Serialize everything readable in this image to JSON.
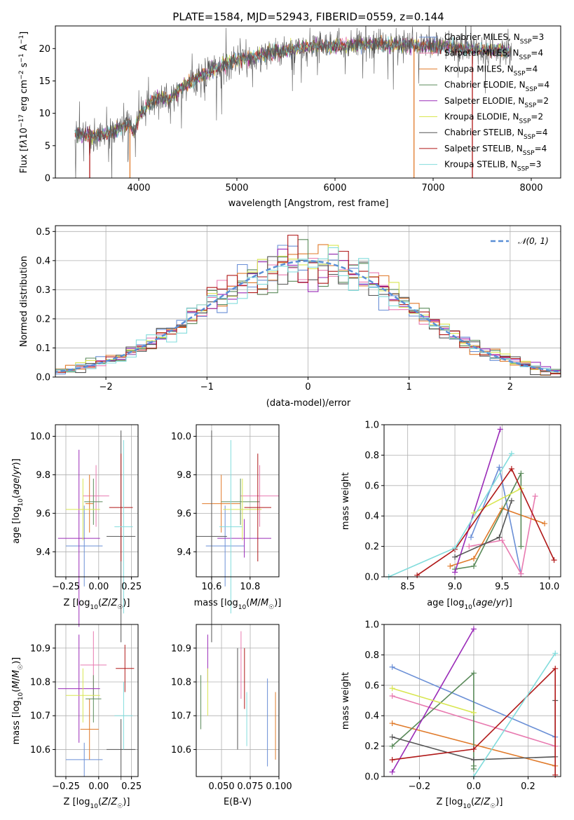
{
  "colors": {
    "chabrier_miles": "#6a8fd6",
    "salpeter_miles": "#e87ab0",
    "kroupa_miles": "#e07a2a",
    "chabrier_elodie": "#5a8a5a",
    "salpeter_elodie": "#9a2bb8",
    "kroupa_elodie": "#d8e650",
    "chabrier_stelib": "#555555",
    "salpeter_stelib": "#b01818",
    "kroupa_stelib": "#82dcdc"
  },
  "chart_data": [
    {
      "id": "spectrum",
      "type": "line",
      "title": "PLATE=1584, MJD=52943, FIBERID=0559, z=0.144",
      "xlabel": "wavelength [Angstrom, rest frame]",
      "ylabel": "Flux [fλ10⁻¹⁷ erg cm⁻² s⁻¹ A⁻¹]",
      "xlim": [
        3150,
        8300
      ],
      "ylim": [
        0,
        23.5
      ],
      "xticks": [
        "4000",
        "5000",
        "6000",
        "7000",
        "8000"
      ],
      "yticks": [
        "0",
        "5",
        "10",
        "15",
        "20"
      ],
      "grid": false,
      "legend_position": "top-right",
      "legend": [
        "Chabrier MILES, N<sub>SSP</sub>=3",
        "Salpeter MILES, N<sub>SSP</sub>=4",
        "Kroupa MILES, N<sub>SSP</sub>=4",
        "Chabrier ELODIE, N<sub>SSP</sub>=4",
        "Salpeter ELODIE, N<sub>SSP</sub>=2",
        "Kroupa ELODIE, N<sub>SSP</sub>=2",
        "Chabrier STELIB, N<sub>SSP</sub>=4",
        "Salpeter STELIB, N<sub>SSP</sub>=4",
        "Kroupa STELIB, N<sub>SSP</sub>=3"
      ],
      "legend_labels": [
        "Chabrier MILES, NSSP=3",
        "Salpeter MILES, NSSP=4",
        "Kroupa MILES, NSSP=4",
        "Chabrier ELODIE, NSSP=4",
        "Salpeter ELODIE, NSSP=2",
        "Kroupa ELODIE, NSSP=2",
        "Chabrier STELIB, NSSP=4",
        "Salpeter STELIB, NSSP=4",
        "Kroupa STELIB, NSSP=3"
      ],
      "continuum": [
        [
          3350,
          6.8
        ],
        [
          3550,
          6.5
        ],
        [
          3700,
          7.0
        ],
        [
          3800,
          7.6
        ],
        [
          3900,
          8.5
        ],
        [
          3950,
          7.0
        ],
        [
          4000,
          9.5
        ],
        [
          4100,
          11.5
        ],
        [
          4200,
          12.5
        ],
        [
          4300,
          12.0
        ],
        [
          4400,
          13.5
        ],
        [
          4600,
          15.5
        ],
        [
          4800,
          17.0
        ],
        [
          5000,
          18.3
        ],
        [
          5200,
          18.8
        ],
        [
          5400,
          19.5
        ],
        [
          5600,
          20.0
        ],
        [
          5800,
          20.3
        ],
        [
          6000,
          20.5
        ],
        [
          6200,
          20.6
        ],
        [
          6400,
          20.7
        ],
        [
          6600,
          20.6
        ],
        [
          6800,
          20.5
        ],
        [
          7000,
          20.4
        ],
        [
          7200,
          20.2
        ],
        [
          7400,
          19.9
        ],
        [
          7600,
          19.7
        ],
        [
          7800,
          19.4
        ]
      ],
      "spike_lines": [
        {
          "series": "salpeter_stelib",
          "x": 3500,
          "y_low": 0,
          "y_high": 6.5
        },
        {
          "series": "kroupa_miles",
          "x": 3910,
          "y_low": 0,
          "y_high": 8.0
        },
        {
          "series": "kroupa_miles",
          "x": 6805,
          "y_low": 0,
          "y_high": 20.5
        },
        {
          "series": "salpeter_stelib",
          "x": 7400,
          "y_low": 0,
          "y_high": 19.9
        }
      ]
    },
    {
      "id": "residuals",
      "type": "histogram",
      "xlabel": "(data-model)/error",
      "ylabel": "Normed distribution",
      "xlim": [
        -2.5,
        2.5
      ],
      "ylim": [
        0,
        0.52
      ],
      "xticks": [
        "−2",
        "−1",
        "0",
        "1",
        "2"
      ],
      "yticks": [
        "0.0",
        "0.1",
        "0.2",
        "0.3",
        "0.4",
        "0.5"
      ],
      "grid": true,
      "legend_position": "top-right",
      "legend": [
        "𝒩(0, 1)"
      ],
      "bin_width": 0.1
    },
    {
      "id": "age-vs-Z",
      "type": "errorbar",
      "xlabel": "Z [log₁₀(Z/Z☉)]",
      "ylabel": "age  [log₁₀(age/yr)]",
      "xlim": [
        -0.33,
        0.3
      ],
      "ylim": [
        9.27,
        10.06
      ],
      "xticks": [
        "−0.25",
        "0.00",
        "0.25"
      ],
      "yticks": [
        "9.4",
        "9.6",
        "9.8",
        "10.0"
      ],
      "grid": true,
      "points": [
        {
          "series": "chabrier_miles",
          "x": -0.11,
          "xerr": 0.14,
          "y": 9.43,
          "yerr": 0.21
        },
        {
          "series": "salpeter_miles",
          "x": -0.02,
          "xerr": 0.1,
          "y": 9.69,
          "yerr": 0.16
        },
        {
          "series": "kroupa_miles",
          "x": -0.07,
          "xerr": 0.03,
          "y": 9.65,
          "yerr": 0.15
        },
        {
          "series": "chabrier_elodie",
          "x": -0.04,
          "xerr": 0.07,
          "y": 9.66,
          "yerr": 0.12
        },
        {
          "series": "salpeter_elodie",
          "x": -0.15,
          "xerr": 0.16,
          "y": 9.47,
          "yerr": 0.46
        },
        {
          "series": "kroupa_elodie",
          "x": -0.12,
          "xerr": 0.13,
          "y": 9.62,
          "yerr": 0.16
        },
        {
          "series": "chabrier_stelib",
          "x": 0.17,
          "xerr": 0.11,
          "y": 9.48,
          "yerr": 0.55
        },
        {
          "series": "salpeter_stelib",
          "x": 0.17,
          "xerr": 0.09,
          "y": 9.63,
          "yerr": 0.28
        },
        {
          "series": "kroupa_stelib",
          "x": 0.19,
          "xerr": 0.07,
          "y": 9.53,
          "yerr": 0.45
        }
      ]
    },
    {
      "id": "age-vs-mass",
      "type": "errorbar",
      "xlabel": "mass [log₁₀(M/M☉)]",
      "ylabel": "",
      "xlim": [
        10.52,
        10.95
      ],
      "ylim": [
        9.27,
        10.06
      ],
      "xticks": [
        "10.6",
        "10.8"
      ],
      "yticks": [
        "9.4",
        "9.6",
        "9.8",
        "10.0"
      ],
      "grid": true,
      "points": [
        {
          "series": "chabrier_miles",
          "x": 10.67,
          "xerr": 0.1,
          "y": 9.43,
          "yerr": 0.21
        },
        {
          "series": "salpeter_miles",
          "x": 10.85,
          "xerr": 0.1,
          "y": 9.69,
          "yerr": 0.16
        },
        {
          "series": "kroupa_miles",
          "x": 10.65,
          "xerr": 0.1,
          "y": 9.65,
          "yerr": 0.15
        },
        {
          "series": "chabrier_elodie",
          "x": 10.75,
          "xerr": 0.1,
          "y": 9.66,
          "yerr": 0.12
        },
        {
          "series": "salpeter_elodie",
          "x": 10.77,
          "xerr": 0.14,
          "y": 9.47,
          "yerr": 0.1
        },
        {
          "series": "kroupa_elodie",
          "x": 10.76,
          "xerr": 0.1,
          "y": 9.62,
          "yerr": 0.16
        },
        {
          "series": "chabrier_stelib",
          "x": 10.6,
          "xerr": 0.08,
          "y": 9.48,
          "yerr": 0.55
        },
        {
          "series": "salpeter_stelib",
          "x": 10.84,
          "xerr": 0.07,
          "y": 9.63,
          "yerr": 0.28
        },
        {
          "series": "kroupa_stelib",
          "x": 10.7,
          "xerr": 0.06,
          "y": 9.53,
          "yerr": 0.45
        }
      ]
    },
    {
      "id": "weight-vs-age",
      "type": "line",
      "xlabel": "age  [log₁₀(age/yr)]",
      "ylabel": "mass weight",
      "xlim": [
        8.25,
        10.12
      ],
      "ylim": [
        0,
        1.0
      ],
      "xticks": [
        "8.5",
        "9.0",
        "9.5",
        "10.0"
      ],
      "yticks": [
        "0.0",
        "0.2",
        "0.4",
        "0.6",
        "0.8",
        "1.0"
      ],
      "grid": true,
      "series": [
        {
          "key": "chabrier_miles",
          "x": [
            9.17,
            9.47,
            9.7
          ],
          "y": [
            0.26,
            0.72,
            0.02
          ]
        },
        {
          "key": "salpeter_miles",
          "x": [
            9.15,
            9.5,
            9.7,
            9.85
          ],
          "y": [
            0.2,
            0.24,
            0.02,
            0.53
          ]
        },
        {
          "key": "kroupa_miles",
          "x": [
            8.95,
            9.2,
            9.5,
            9.95
          ],
          "y": [
            0.07,
            0.12,
            0.45,
            0.35
          ]
        },
        {
          "key": "chabrier_elodie",
          "x": [
            9.0,
            9.2,
            9.7,
            9.7
          ],
          "y": [
            0.05,
            0.07,
            0.68,
            0.2
          ]
        },
        {
          "key": "salpeter_elodie",
          "x": [
            9.0,
            9.48
          ],
          "y": [
            0.03,
            0.97
          ]
        },
        {
          "key": "kroupa_elodie",
          "x": [
            9.2,
            9.7
          ],
          "y": [
            0.42,
            0.58
          ]
        },
        {
          "key": "chabrier_stelib",
          "x": [
            9.0,
            9.47,
            9.6
          ],
          "y": [
            0.13,
            0.26,
            0.5
          ]
        },
        {
          "key": "salpeter_stelib",
          "x": [
            8.6,
            9.0,
            9.6,
            10.05
          ],
          "y": [
            0.01,
            0.18,
            0.71,
            0.11
          ]
        },
        {
          "key": "kroupa_stelib",
          "x": [
            8.3,
            9.0,
            9.6
          ],
          "y": [
            0.0,
            0.19,
            0.81
          ]
        }
      ]
    },
    {
      "id": "mass-vs-Z",
      "type": "errorbar",
      "xlabel": "Z [log₁₀(Z/Z☉)]",
      "ylabel": "mass [log₁₀(M/M☉)]",
      "xlim": [
        -0.33,
        0.3
      ],
      "ylim": [
        10.52,
        10.97
      ],
      "xticks": [
        "−0.25",
        "0.00",
        "0.25"
      ],
      "yticks": [
        "10.6",
        "10.7",
        "10.8",
        "10.9"
      ],
      "grid": true,
      "points": [
        {
          "series": "chabrier_miles",
          "x": -0.11,
          "xerr": 0.14,
          "y": 10.57,
          "yerr": 0.05
        },
        {
          "series": "salpeter_miles",
          "x": -0.04,
          "xerr": 0.1,
          "y": 10.85,
          "yerr": 0.1
        },
        {
          "series": "kroupa_miles",
          "x": -0.07,
          "xerr": 0.07,
          "y": 10.66,
          "yerr": 0.09
        },
        {
          "series": "chabrier_elodie",
          "x": -0.04,
          "xerr": 0.06,
          "y": 10.75,
          "yerr": 0.07
        },
        {
          "series": "salpeter_elodie",
          "x": -0.15,
          "xerr": 0.16,
          "y": 10.78,
          "yerr": 0.16
        },
        {
          "series": "kroupa_elodie",
          "x": -0.12,
          "xerr": 0.13,
          "y": 10.76,
          "yerr": 0.08
        },
        {
          "series": "chabrier_stelib",
          "x": 0.17,
          "xerr": 0.11,
          "y": 10.6,
          "yerr": 0.09
        },
        {
          "series": "salpeter_stelib",
          "x": 0.2,
          "xerr": 0.07,
          "y": 10.84,
          "yerr": 0.07
        },
        {
          "series": "kroupa_stelib",
          "x": 0.19,
          "xerr": 0.07,
          "y": 10.7,
          "yerr": 0.1
        }
      ]
    },
    {
      "id": "mass-vs-ebv",
      "type": "errorbar",
      "xlabel": "E(B-V)",
      "ylabel": "",
      "xlim": [
        0.028,
        0.1
      ],
      "ylim": [
        10.52,
        10.97
      ],
      "xticks": [
        "0.050",
        "0.075",
        "0.100"
      ],
      "yticks": [
        "10.6",
        "10.7",
        "10.8",
        "10.9"
      ],
      "grid": true,
      "points": [
        {
          "series": "chabrier_miles",
          "x": 0.09,
          "xerr": 0,
          "y": 10.68,
          "yerr": 0.13
        },
        {
          "series": "salpeter_miles",
          "x": 0.067,
          "xerr": 0,
          "y": 10.85,
          "yerr": 0.1
        },
        {
          "series": "kroupa_miles",
          "x": 0.097,
          "xerr": 0,
          "y": 10.67,
          "yerr": 0.1
        },
        {
          "series": "chabrier_elodie",
          "x": 0.032,
          "xerr": 0,
          "y": 10.74,
          "yerr": 0.08
        },
        {
          "series": "salpeter_elodie",
          "x": 0.038,
          "xerr": 0,
          "y": 10.87,
          "yerr": 0.07
        },
        {
          "series": "kroupa_elodie",
          "x": 0.038,
          "xerr": 0,
          "y": 10.77,
          "yerr": 0.07
        },
        {
          "series": "chabrier_stelib",
          "x": 0.064,
          "xerr": 0,
          "y": 10.75,
          "yerr": 0.15
        },
        {
          "series": "salpeter_stelib",
          "x": 0.07,
          "xerr": 0,
          "y": 10.81,
          "yerr": 0.09
        },
        {
          "series": "kroupa_stelib",
          "x": 0.072,
          "xerr": 0,
          "y": 10.69,
          "yerr": 0.08
        }
      ]
    },
    {
      "id": "weight-vs-Z",
      "type": "line",
      "xlabel": "Z [log₁₀(Z/Z☉)]",
      "ylabel": "mass weight",
      "xlim": [
        -0.33,
        0.32
      ],
      "ylim": [
        0,
        1.0
      ],
      "xticks": [
        "−0.2",
        "0.0",
        "0.2"
      ],
      "yticks": [
        "0.0",
        "0.2",
        "0.4",
        "0.6",
        "0.8",
        "1.0"
      ],
      "grid": true,
      "series": [
        {
          "key": "chabrier_miles",
          "x": [
            -0.3,
            0.3
          ],
          "y": [
            0.72,
            0.26
          ]
        },
        {
          "key": "salpeter_miles",
          "x": [
            -0.3,
            0.3
          ],
          "y": [
            0.53,
            0.2
          ]
        },
        {
          "key": "kroupa_miles",
          "x": [
            -0.3,
            0.3
          ],
          "y": [
            0.35,
            0.07
          ]
        },
        {
          "key": "chabrier_elodie",
          "x": [
            -0.3,
            0.0,
            0.0,
            0.0
          ],
          "y": [
            0.2,
            0.68,
            0.07,
            0.05
          ]
        },
        {
          "key": "salpeter_elodie",
          "x": [
            -0.3,
            0.0
          ],
          "y": [
            0.03,
            0.97
          ]
        },
        {
          "key": "kroupa_elodie",
          "x": [
            -0.3,
            0.0
          ],
          "y": [
            0.58,
            0.42
          ]
        },
        {
          "key": "chabrier_stelib",
          "x": [
            -0.3,
            0.0,
            0.3,
            0.3
          ],
          "y": [
            0.26,
            0.11,
            0.13,
            0.5
          ]
        },
        {
          "key": "salpeter_stelib",
          "x": [
            -0.3,
            0.0,
            0.3,
            0.3
          ],
          "y": [
            0.11,
            0.18,
            0.71,
            0.01
          ]
        },
        {
          "key": "kroupa_stelib",
          "x": [
            0.0,
            0.3
          ],
          "y": [
            0.0,
            0.81
          ]
        }
      ]
    }
  ]
}
